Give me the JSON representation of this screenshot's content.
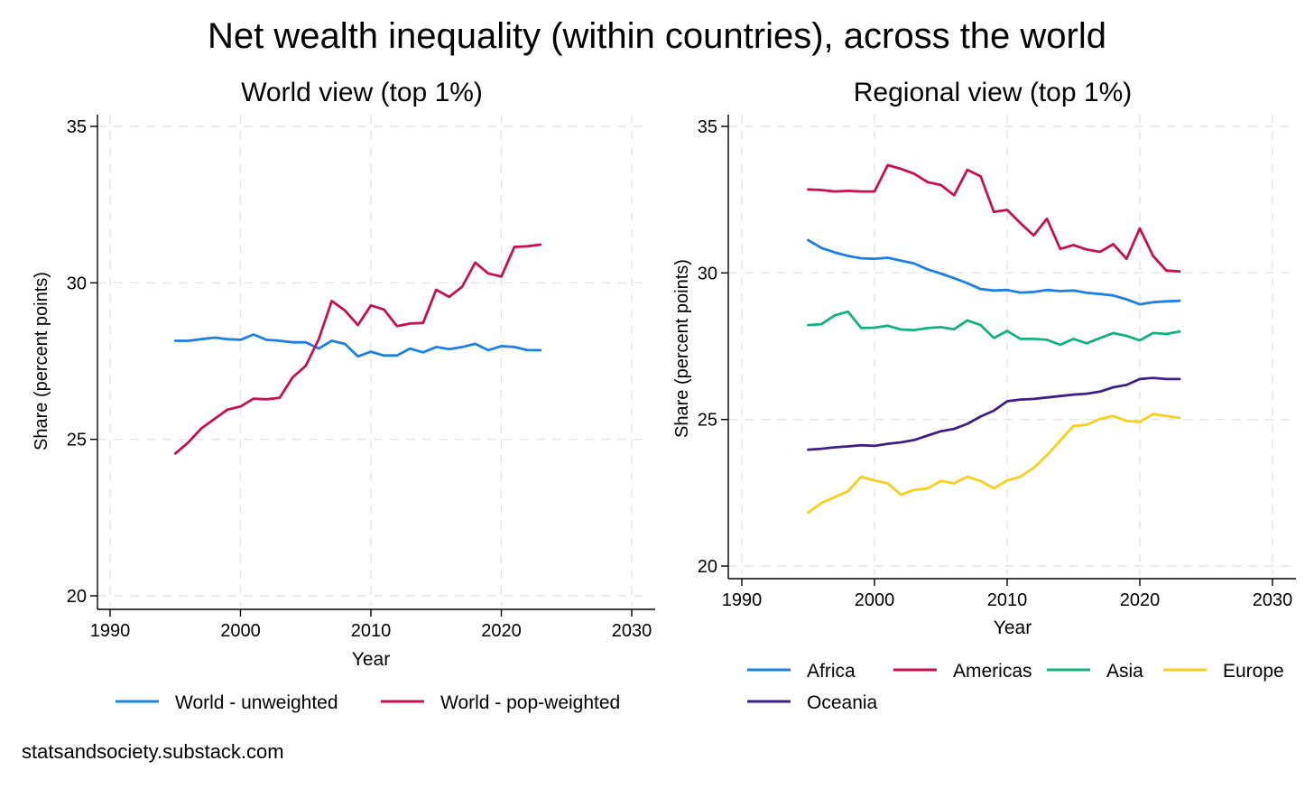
{
  "title": "Net wealth inequality (within countries), across the world",
  "source": "statsandsociety.substack.com",
  "colors": {
    "blue": "#1a80e8",
    "crimson": "#c8104f",
    "green": "#14b27b",
    "yellow": "#f8cf1a",
    "purple": "#3d1f86",
    "grid": "#e4e4e4"
  },
  "chart_data": [
    {
      "type": "line",
      "title": "World view (top 1%)",
      "xlabel": "Year",
      "ylabel": "Share (percent points)",
      "xlim": [
        1990,
        2030
      ],
      "ylim": [
        20,
        35
      ],
      "xticks": [
        1990,
        2000,
        2010,
        2020,
        2030
      ],
      "yticks": [
        20,
        25,
        30,
        35
      ],
      "grid": true,
      "legend": "bottom",
      "x": [
        1995,
        1996,
        1997,
        1998,
        1999,
        2000,
        2001,
        2002,
        2003,
        2004,
        2005,
        2006,
        2007,
        2008,
        2009,
        2010,
        2011,
        2012,
        2013,
        2014,
        2015,
        2016,
        2017,
        2018,
        2019,
        2020,
        2021,
        2022,
        2023
      ],
      "series": [
        {
          "name": "World - unweighted",
          "color": "blue",
          "values": [
            28.15,
            28.15,
            28.2,
            28.25,
            28.2,
            28.18,
            28.35,
            28.18,
            28.15,
            28.1,
            28.1,
            27.9,
            28.15,
            28.05,
            27.65,
            27.8,
            27.68,
            27.68,
            27.9,
            27.78,
            27.95,
            27.88,
            27.95,
            28.05,
            27.85,
            27.98,
            27.95,
            27.85,
            27.85
          ]
        },
        {
          "name": "World - pop-weighted",
          "color": "crimson",
          "values": [
            24.55,
            24.9,
            25.35,
            25.65,
            25.95,
            26.05,
            26.3,
            26.28,
            26.33,
            26.98,
            27.35,
            28.2,
            29.42,
            29.12,
            28.65,
            29.28,
            29.15,
            28.62,
            28.7,
            28.72,
            29.78,
            29.55,
            29.88,
            30.65,
            30.3,
            30.2,
            31.15,
            31.17,
            31.22
          ]
        }
      ]
    },
    {
      "type": "line",
      "title": "Regional view (top 1%)",
      "xlabel": "Year",
      "ylabel": "Share (percent points)",
      "xlim": [
        1990,
        2030
      ],
      "ylim": [
        20,
        35
      ],
      "xticks": [
        1990,
        2000,
        2010,
        2020,
        2030
      ],
      "yticks": [
        20,
        25,
        30,
        35
      ],
      "grid": true,
      "legend": "bottom",
      "x": [
        1995,
        1996,
        1997,
        1998,
        1999,
        2000,
        2001,
        2002,
        2003,
        2004,
        2005,
        2006,
        2007,
        2008,
        2009,
        2010,
        2011,
        2012,
        2013,
        2014,
        2015,
        2016,
        2017,
        2018,
        2019,
        2020,
        2021,
        2022,
        2023
      ],
      "series": [
        {
          "name": "Africa",
          "color": "blue",
          "values": [
            31.12,
            30.85,
            30.7,
            30.58,
            30.5,
            30.48,
            30.52,
            30.42,
            30.32,
            30.12,
            29.98,
            29.82,
            29.65,
            29.45,
            29.4,
            29.42,
            29.33,
            29.35,
            29.42,
            29.38,
            29.4,
            29.32,
            29.28,
            29.23,
            29.1,
            28.93,
            29.0,
            29.03,
            29.05
          ]
        },
        {
          "name": "Americas",
          "color": "crimson",
          "values": [
            32.85,
            32.83,
            32.78,
            32.8,
            32.78,
            32.78,
            33.68,
            33.55,
            33.38,
            33.1,
            33.0,
            32.65,
            33.52,
            33.3,
            32.08,
            32.15,
            31.7,
            31.28,
            31.85,
            30.82,
            30.95,
            30.8,
            30.72,
            30.98,
            30.48,
            31.52,
            30.58,
            30.08,
            30.05
          ]
        },
        {
          "name": "Asia",
          "color": "green",
          "values": [
            28.22,
            28.25,
            28.55,
            28.68,
            28.12,
            28.13,
            28.2,
            28.07,
            28.05,
            28.12,
            28.15,
            28.08,
            28.38,
            28.22,
            27.78,
            28.02,
            27.75,
            27.75,
            27.72,
            27.55,
            27.75,
            27.6,
            27.78,
            27.95,
            27.85,
            27.7,
            27.95,
            27.92,
            28.0
          ]
        },
        {
          "name": "Europe",
          "color": "yellow",
          "values": [
            21.82,
            22.15,
            22.35,
            22.55,
            23.05,
            22.92,
            22.82,
            22.43,
            22.6,
            22.65,
            22.9,
            22.82,
            23.05,
            22.9,
            22.65,
            22.92,
            23.05,
            23.35,
            23.78,
            24.28,
            24.78,
            24.82,
            25.02,
            25.12,
            24.95,
            24.92,
            25.18,
            25.12,
            25.05
          ]
        },
        {
          "name": "Oceania",
          "color": "purple",
          "values": [
            23.97,
            24.0,
            24.05,
            24.08,
            24.12,
            24.1,
            24.17,
            24.22,
            24.3,
            24.45,
            24.6,
            24.68,
            24.85,
            25.1,
            25.3,
            25.62,
            25.68,
            25.7,
            25.75,
            25.8,
            25.85,
            25.88,
            25.95,
            26.1,
            26.18,
            26.38,
            26.42,
            26.38,
            26.38
          ]
        }
      ]
    }
  ]
}
